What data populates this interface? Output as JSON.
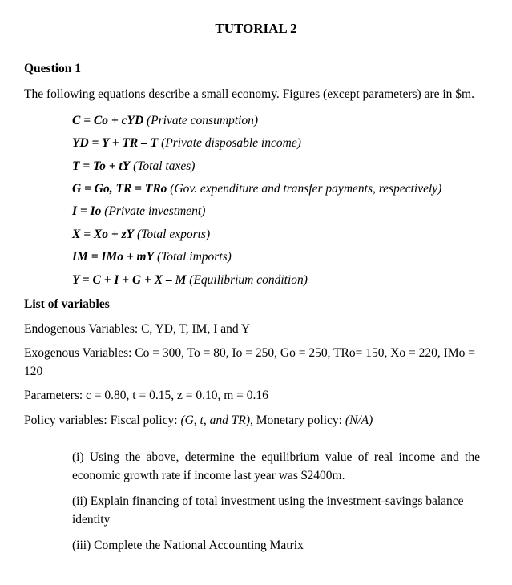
{
  "title": "TUTORIAL 2",
  "question_heading": "Question 1",
  "intro": "The following equations describe a small economy. Figures (except parameters) are in $m.",
  "equations": [
    {
      "sym": "C = Co + cYD",
      "desc": " (Private consumption)"
    },
    {
      "sym": "YD = Y + TR – T",
      "desc": " (Private disposable income)"
    },
    {
      "sym": "T = To + tY",
      "desc": " (Total taxes)"
    },
    {
      "sym": "G = Go, TR = TRo",
      "desc": " (Gov. expenditure and transfer payments, respectively)"
    },
    {
      "sym": "I = Io",
      "desc": " (Private investment)"
    },
    {
      "sym": "X = Xo + zY",
      "desc": " (Total exports)"
    },
    {
      "sym": "IM = IMo + mY",
      "desc": " (Total imports)"
    },
    {
      "sym": "Y = C + I + G + X – M",
      "desc": " (Equilibrium condition)"
    }
  ],
  "list_heading": "List of variables",
  "endog": "Endogenous Variables: C, YD, T, IM, I and Y",
  "exog": "Exogenous Variables: Co = 300, To = 80, Io = 250, Go = 250, TRo= 150, Xo = 220, IMo = 120",
  "params": "Parameters: c = 0.80, t = 0.15, z = 0.10, m = 0.16",
  "policy_pre": "Policy variables: Fiscal policy: ",
  "policy_it1": "(G, t, and TR)",
  "policy_mid": ", Monetary policy: ",
  "policy_it2": "(N/A)",
  "sub1": "(i) Using the above, determine the equilibrium value of real income and the economic growth rate if income last year was $2400m.",
  "sub2": "(ii) Explain financing of total investment using the investment-savings balance identity",
  "sub3": "(iii) Complete the National Accounting Matrix"
}
